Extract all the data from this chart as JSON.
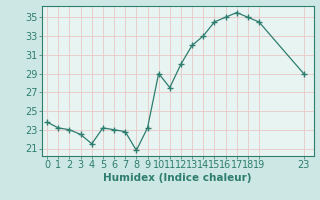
{
  "x": [
    0,
    1,
    2,
    3,
    4,
    5,
    6,
    7,
    8,
    9,
    10,
    11,
    12,
    13,
    14,
    15,
    16,
    17,
    18,
    19,
    23
  ],
  "y": [
    23.8,
    23.2,
    23.0,
    22.5,
    21.5,
    23.2,
    23.0,
    22.8,
    20.8,
    23.2,
    29.0,
    27.5,
    30.0,
    32.0,
    33.0,
    34.5,
    35.0,
    35.5,
    35.0,
    34.5,
    29.0
  ],
  "line_color": "#2e7d6e",
  "marker": "+",
  "marker_size": 4,
  "bg_color": "#cde8e4",
  "grid_color": "#e8c8c8",
  "xlabel": "Humidex (Indice chaleur)",
  "xlabel_fontsize": 7.5,
  "tick_fontsize": 7,
  "xlim": [
    -0.5,
    23.9
  ],
  "ylim": [
    20.2,
    36.2
  ],
  "yticks": [
    21,
    23,
    25,
    27,
    29,
    31,
    33,
    35
  ],
  "xticks": [
    0,
    1,
    2,
    3,
    4,
    5,
    6,
    7,
    8,
    9,
    10,
    11,
    12,
    13,
    14,
    15,
    16,
    17,
    18,
    19,
    23
  ],
  "xtick_labels": [
    "0",
    "1",
    "2",
    "3",
    "4",
    "5",
    "6",
    "7",
    "8",
    "9",
    "10",
    "11",
    "12",
    "13",
    "14",
    "15",
    "16",
    "17",
    "18",
    "19",
    "23"
  ],
  "axis_bg": "#cde8e4",
  "plot_bg": "#e8f4f2",
  "spine_color": "#2e7d6e",
  "label_color": "#2e7d6e"
}
